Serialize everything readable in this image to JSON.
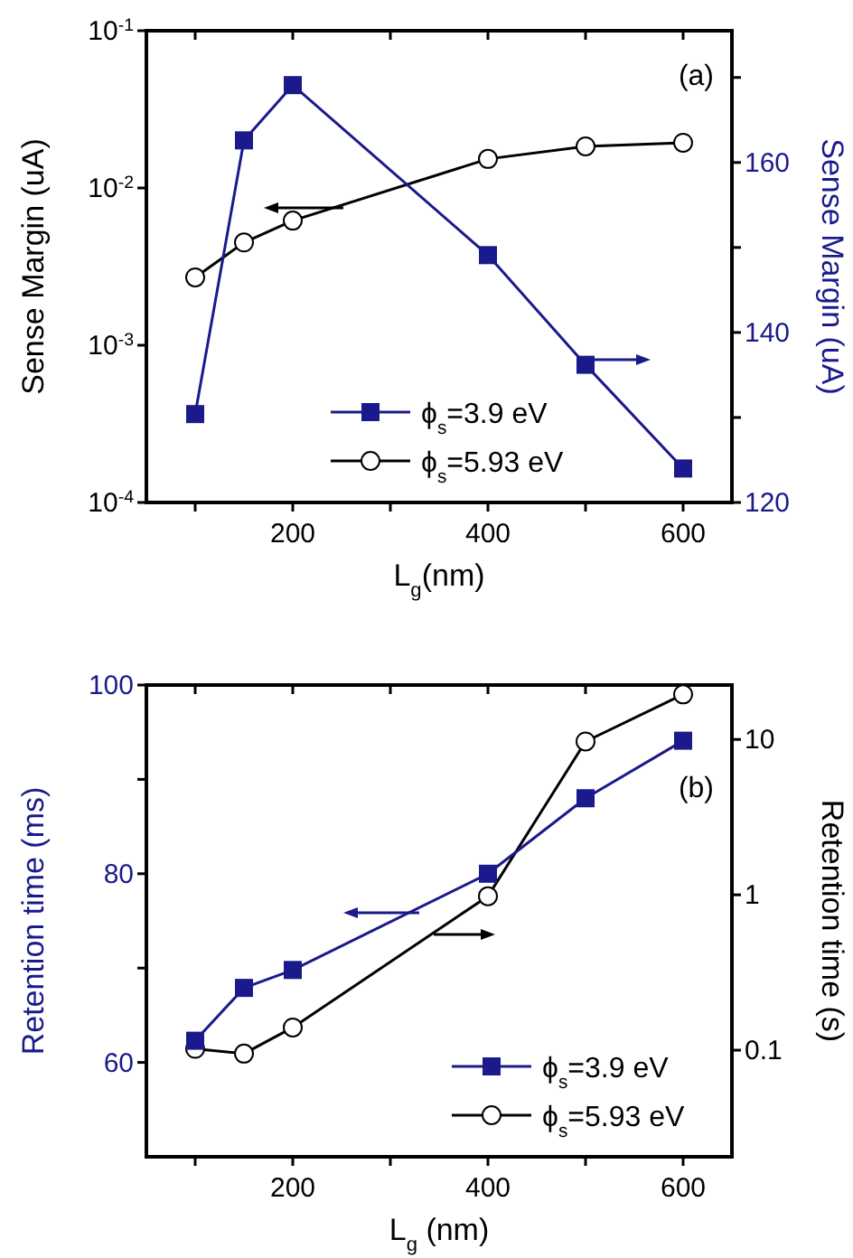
{
  "chart_data": [
    {
      "type": "line",
      "xlabel": "L$_{g}$(nm)",
      "ylabel": "Sense Margin (uA)",
      "y2label": "Sense Margin (uA)",
      "annotations": [
        "(a)"
      ],
      "log": "y",
      "xlim": [
        50,
        650
      ],
      "xticks": [
        {
          "value": 100,
          "label": null
        },
        200,
        {
          "value": 300,
          "label": null
        },
        400,
        {
          "value": 500,
          "label": null
        },
        600
      ],
      "ylim": [
        0.0001,
        0.1
      ],
      "yticks": [
        {
          "value": 0.1,
          "label": "10$^{-1}$"
        },
        {
          "value": 0.01,
          "label": "10$^{-2}$"
        },
        {
          "value": 0.001,
          "label": "10$^{-3}$"
        },
        {
          "value": 0.0001,
          "label": "10$^{-4}$"
        }
      ],
      "y2lim": [
        120,
        175.5
      ],
      "y2ticks": [
        120,
        {
          "value": 130,
          "label": null
        },
        140,
        {
          "value": 150,
          "label": null
        },
        160,
        {
          "value": 170,
          "label": null
        }
      ],
      "legend": "bottom",
      "x": [
        100,
        150,
        200,
        400,
        500,
        600
      ],
      "series": [
        {
          "name": "ϕ$_{s}$=3.9 eV",
          "color": "#1a1a8c",
          "axis": "y2",
          "marker": "square",
          "values": [
            130.4,
            162.6,
            169.1,
            149.1,
            136.2,
            124.0
          ]
        },
        {
          "name": "ϕ$_{s}$=5.93 eV",
          "color": "#000000",
          "marker": "circle",
          "values": [
            0.0027,
            0.0045,
            0.0062,
            0.0153,
            0.0184,
            0.0194
          ]
        }
      ]
    },
    {
      "type": "line",
      "xlabel": "L$_{g}$ (nm)",
      "ylabel": "Retention time (ms)",
      "y2label": "Retention time (s)",
      "annotations": [
        "(b)"
      ],
      "log": "y2",
      "xlim": [
        50,
        650
      ],
      "xticks": [
        {
          "value": 100,
          "label": null
        },
        200,
        {
          "value": 300,
          "label": null
        },
        400,
        {
          "value": 500,
          "label": null
        },
        600
      ],
      "ylim": [
        50,
        100
      ],
      "yticks": [
        60,
        {
          "value": 70,
          "label": null
        },
        80,
        {
          "value": 90,
          "label": null
        },
        100
      ],
      "y2lim": [
        0.0206,
        22.4
      ],
      "y2ticks": [
        0.1,
        1,
        10
      ],
      "legend": "bottom right",
      "x": [
        100,
        150,
        200,
        400,
        500,
        600
      ],
      "series": [
        {
          "name": "ϕ$_{s}$=3.9 eV",
          "color": "#1a1a8c",
          "marker": "square",
          "values": [
            62.3,
            67.9,
            69.8,
            80,
            88,
            94.1
          ]
        },
        {
          "name": "ϕ$_{s}$=5.93 eV",
          "color": "#000000",
          "axis": "y2",
          "marker": "circle",
          "values": [
            0.102,
            0.095,
            0.14,
            0.98,
            9.7,
            19.5
          ]
        }
      ]
    }
  ]
}
